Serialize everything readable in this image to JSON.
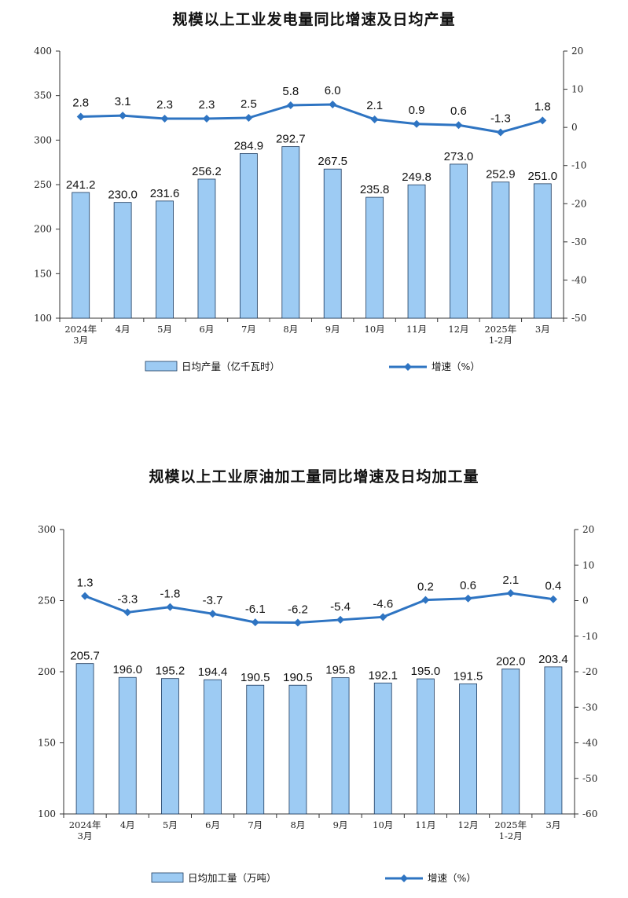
{
  "chart_data": [
    {
      "type": "bar",
      "title": "规模以上工业发电量同比增速及日均产量",
      "categories": [
        "2024年\n3月",
        "4月",
        "5月",
        "6月",
        "7月",
        "8月",
        "9月",
        "10月",
        "11月",
        "12月",
        "2025年\n1-2月",
        "3月"
      ],
      "series": [
        {
          "name": "日均产量（亿千瓦时）",
          "type": "bar",
          "axis": "left",
          "values": [
            241.2,
            230.0,
            231.6,
            256.2,
            284.9,
            292.7,
            267.5,
            235.8,
            249.8,
            273.0,
            252.9,
            251.0
          ]
        },
        {
          "name": "增速（%）",
          "type": "line",
          "axis": "right",
          "values": [
            2.8,
            3.1,
            2.3,
            2.3,
            2.5,
            5.8,
            6.0,
            2.1,
            0.9,
            0.6,
            -1.3,
            1.8
          ]
        }
      ],
      "ylim_left": [
        100,
        400
      ],
      "yticks_left": [
        100,
        150,
        200,
        250,
        300,
        350,
        400
      ],
      "ylim_right": [
        -50,
        20
      ],
      "yticks_right": [
        -50,
        -40,
        -30,
        -20,
        -10,
        0,
        10,
        20
      ],
      "legend_position": "bottom",
      "grid": false,
      "colors": {
        "bar_fill": "#9dcbf3",
        "bar_stroke": "#1c3a5e",
        "line": "#2e74c2"
      }
    },
    {
      "type": "bar",
      "title": "规模以上工业原油加工量同比增速及日均加工量",
      "categories": [
        "2024年\n3月",
        "4月",
        "5月",
        "6月",
        "7月",
        "8月",
        "9月",
        "10月",
        "11月",
        "12月",
        "2025年\n1-2月",
        "3月"
      ],
      "series": [
        {
          "name": "日均加工量（万吨）",
          "type": "bar",
          "axis": "left",
          "values": [
            205.7,
            196.0,
            195.2,
            194.4,
            190.5,
            190.5,
            195.8,
            192.1,
            195.0,
            191.5,
            202.0,
            203.4
          ]
        },
        {
          "name": "增速（%）",
          "type": "line",
          "axis": "right",
          "values": [
            1.3,
            -3.3,
            -1.8,
            -3.7,
            -6.1,
            -6.2,
            -5.4,
            -4.6,
            0.2,
            0.6,
            2.1,
            0.4
          ]
        }
      ],
      "ylim_left": [
        100,
        300
      ],
      "yticks_left": [
        100,
        150,
        200,
        250,
        300
      ],
      "ylim_right": [
        -60,
        20
      ],
      "yticks_right": [
        -60,
        -50,
        -40,
        -30,
        -20,
        -10,
        0,
        10,
        20
      ],
      "legend_position": "bottom",
      "grid": false,
      "colors": {
        "bar_fill": "#9dcbf3",
        "bar_stroke": "#1c3a5e",
        "line": "#2e74c2"
      }
    }
  ]
}
